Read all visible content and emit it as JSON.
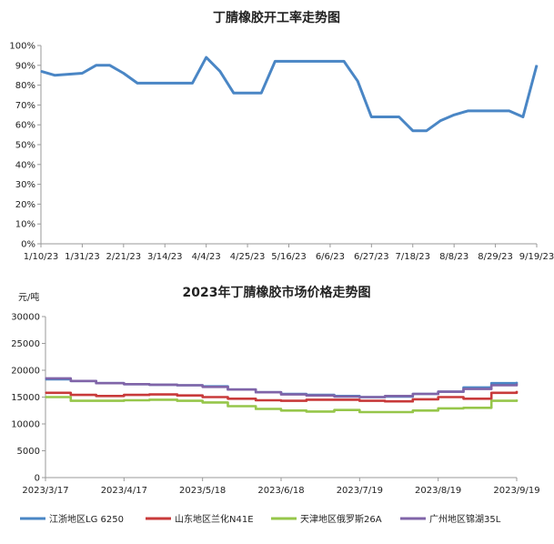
{
  "chart_data": [
    {
      "type": "line",
      "title": "丁腈橡胶开工率走势图",
      "xlabel": "",
      "ylabel": "",
      "ylim": [
        0,
        100
      ],
      "y_ticks": [
        "0%",
        "10%",
        "20%",
        "30%",
        "40%",
        "50%",
        "60%",
        "70%",
        "80%",
        "90%",
        "100%"
      ],
      "x_tick_labels": [
        "1/10/23",
        "1/31/23",
        "2/21/23",
        "3/14/23",
        "4/4/23",
        "4/25/23",
        "5/16/23",
        "6/6/23",
        "6/27/23",
        "7/18/23",
        "8/8/23",
        "8/29/23",
        "9/19/23"
      ],
      "grid": false,
      "legend": "none",
      "colors": {
        "line": "#4a86c5",
        "axis": "#9a9a9a"
      },
      "series": [
        {
          "x": [
            "2023-01-10",
            "2023-01-17",
            "2023-01-24",
            "2023-01-31",
            "2023-02-07",
            "2023-02-14",
            "2023-02-21",
            "2023-02-28",
            "2023-03-07",
            "2023-03-14",
            "2023-03-21",
            "2023-03-28",
            "2023-04-04",
            "2023-04-11",
            "2023-04-18",
            "2023-04-25",
            "2023-05-02",
            "2023-05-09",
            "2023-05-16",
            "2023-05-23",
            "2023-05-30",
            "2023-06-06",
            "2023-06-13",
            "2023-06-20",
            "2023-06-27",
            "2023-07-04",
            "2023-07-11",
            "2023-07-18",
            "2023-07-25",
            "2023-08-01",
            "2023-08-08",
            "2023-08-15",
            "2023-08-22",
            "2023-08-29",
            "2023-09-05",
            "2023-09-12",
            "2023-09-19"
          ],
          "values": [
            87,
            85,
            85.5,
            86,
            90,
            90,
            86,
            81,
            81,
            81,
            81,
            81,
            94,
            87,
            76,
            76,
            76,
            92,
            92,
            92,
            92,
            92,
            92,
            82,
            64,
            64,
            64,
            57,
            57,
            62,
            65,
            67,
            67,
            67,
            67,
            64,
            90
          ]
        }
      ]
    },
    {
      "type": "line",
      "title": "2023年丁腈橡胶市场价格走势图",
      "unit_label": "元/吨",
      "xlabel": "",
      "ylabel": "元/吨",
      "ylim": [
        0,
        30000
      ],
      "y_ticks": [
        "0",
        "5000",
        "10000",
        "15000",
        "20000",
        "25000",
        "30000"
      ],
      "x_tick_labels": [
        "2023/3/17",
        "2023/4/17",
        "2023/5/18",
        "2023/6/18",
        "2023/7/19",
        "2023/8/19",
        "2023/9/19"
      ],
      "grid": false,
      "legend": "bottom",
      "x": [
        "2023-03-17",
        "2023-03-27",
        "2023-04-06",
        "2023-04-17",
        "2023-04-27",
        "2023-05-08",
        "2023-05-18",
        "2023-05-28",
        "2023-06-08",
        "2023-06-18",
        "2023-06-28",
        "2023-07-09",
        "2023-07-19",
        "2023-07-29",
        "2023-08-09",
        "2023-08-19",
        "2023-08-29",
        "2023-09-09",
        "2023-09-19"
      ],
      "series": [
        {
          "name": "江浙地区LG 6250",
          "color": "#4a86c5",
          "values": [
            18300,
            18000,
            17600,
            17400,
            17300,
            17200,
            17000,
            16400,
            15900,
            15600,
            15400,
            15200,
            15000,
            15100,
            15600,
            16000,
            16800,
            17600,
            17800
          ]
        },
        {
          "name": "山东地区兰化N41E",
          "color": "#c83a3a",
          "values": [
            15800,
            15400,
            15200,
            15400,
            15500,
            15300,
            15000,
            14700,
            14400,
            14300,
            14500,
            14500,
            14300,
            14200,
            14600,
            15000,
            14700,
            15800,
            16100
          ]
        },
        {
          "name": "天津地区俄罗斯26A",
          "color": "#96c64a",
          "values": [
            15000,
            14300,
            14300,
            14400,
            14500,
            14300,
            14000,
            13300,
            12800,
            12500,
            12300,
            12600,
            12200,
            12200,
            12500,
            12900,
            13000,
            14300,
            14500
          ]
        },
        {
          "name": "广州地区锦湖35L",
          "color": "#8064a8",
          "values": [
            18500,
            18000,
            17600,
            17400,
            17300,
            17200,
            16900,
            16400,
            15900,
            15500,
            15300,
            15100,
            15000,
            15200,
            15600,
            16000,
            16500,
            17200,
            17500
          ]
        }
      ]
    }
  ]
}
